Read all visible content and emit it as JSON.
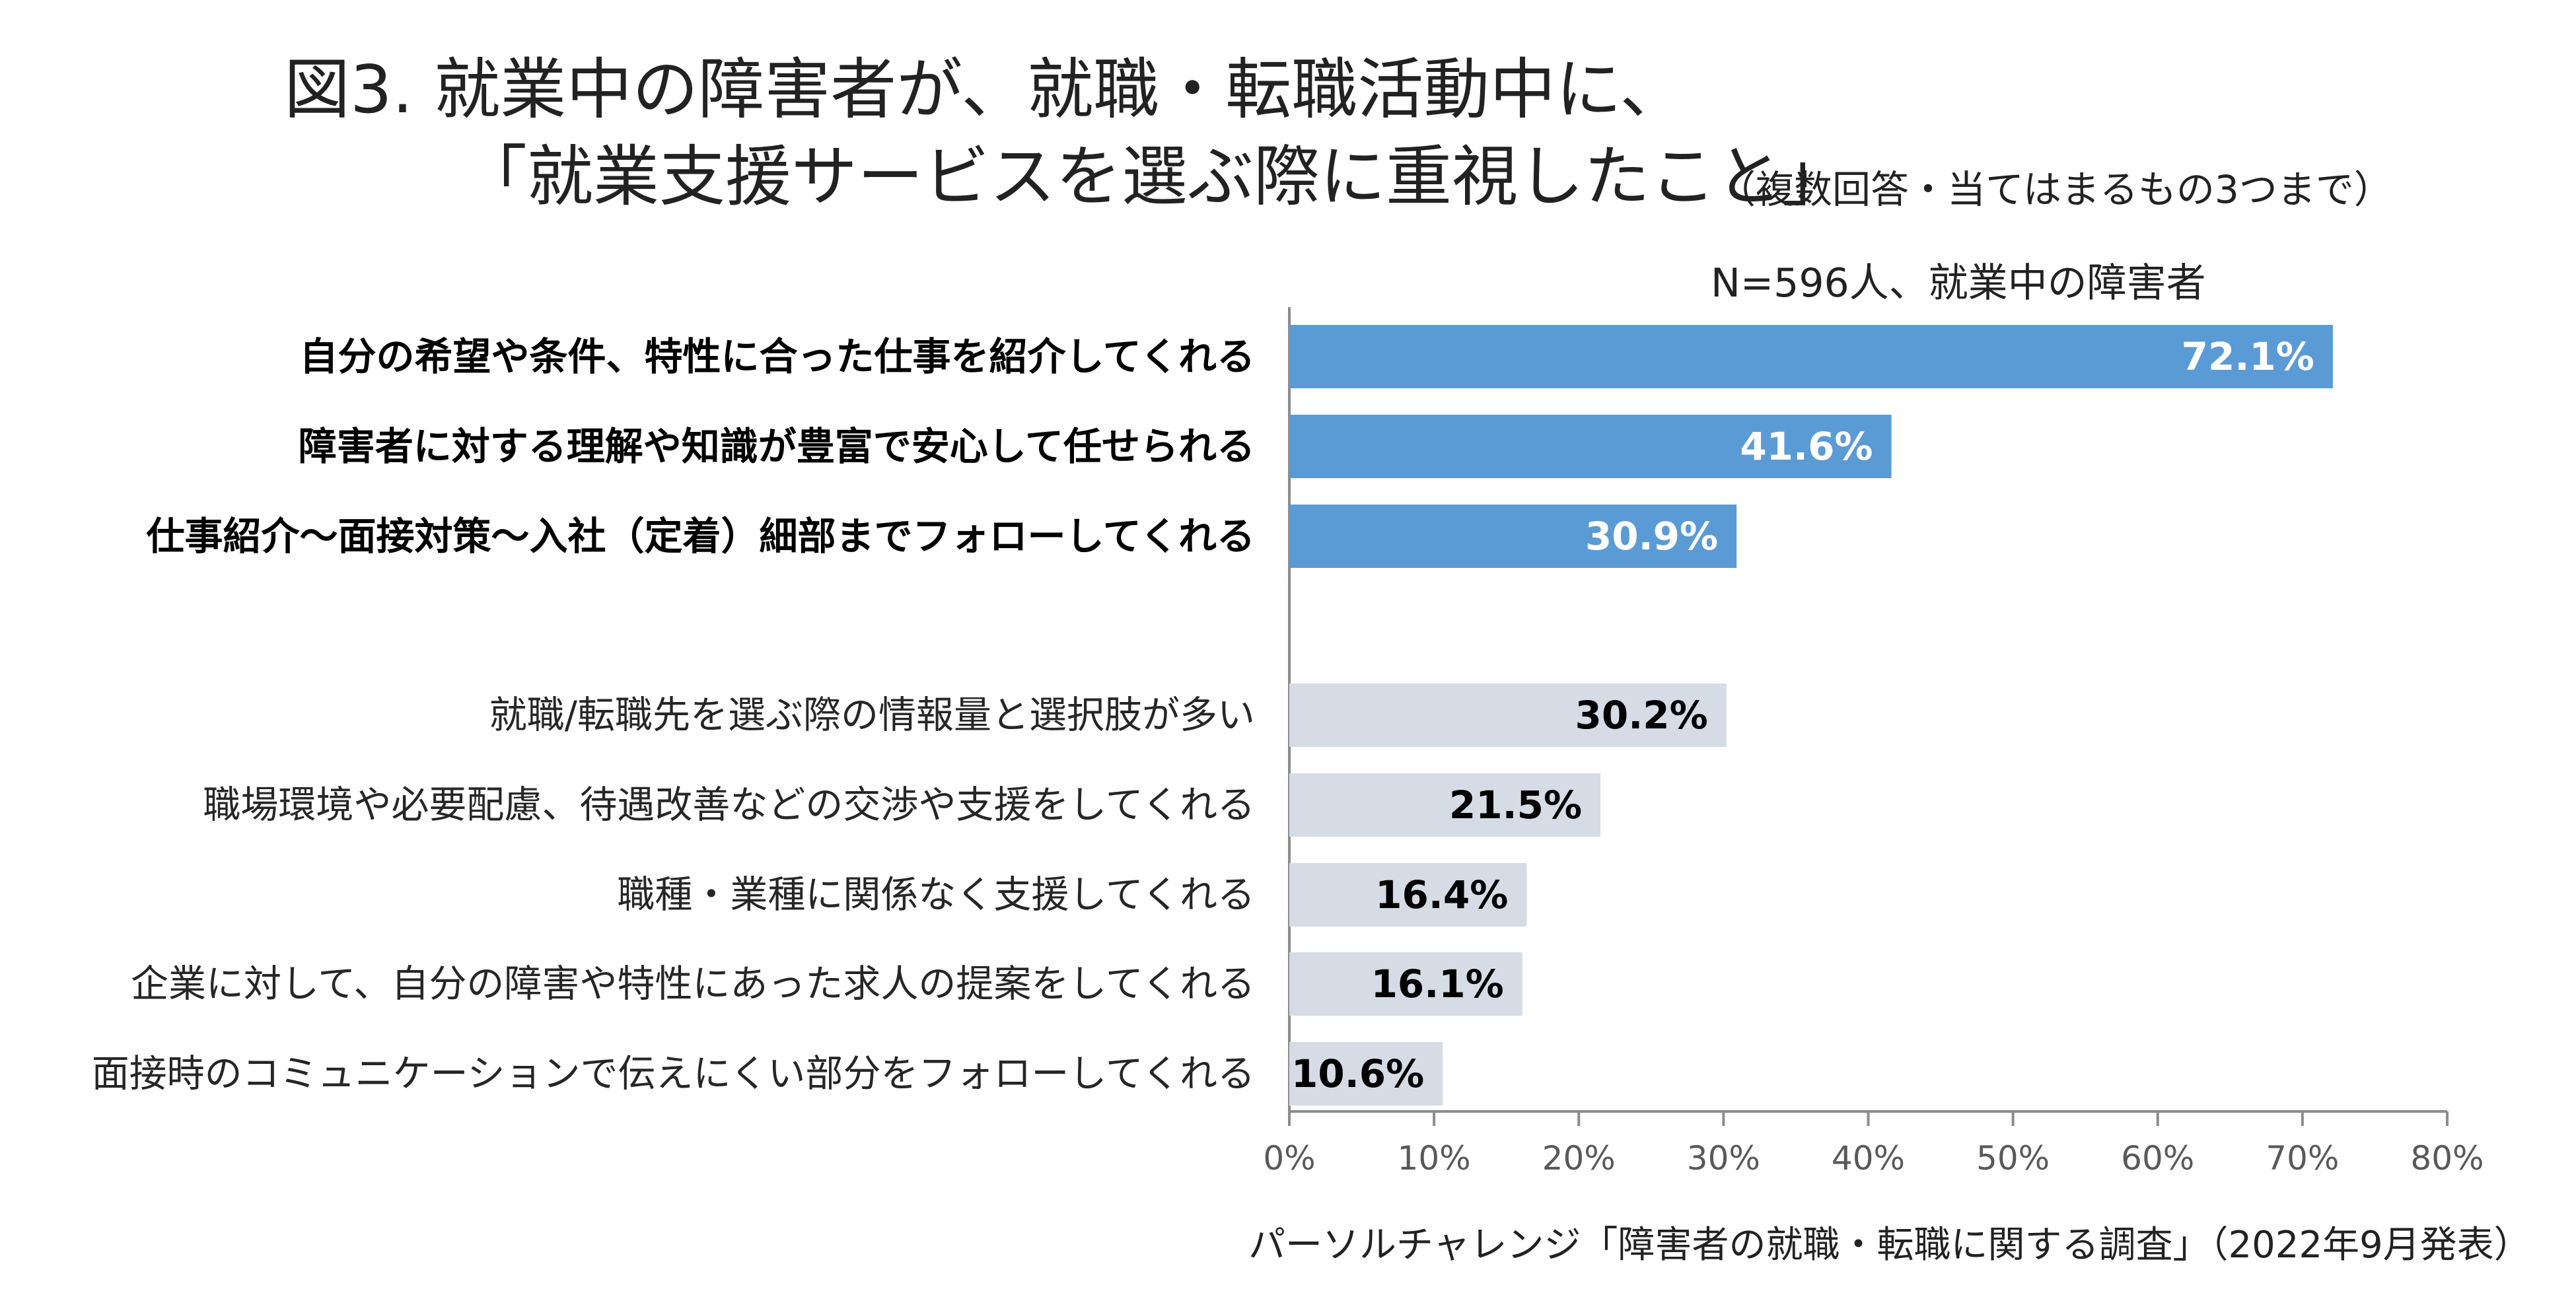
{
  "title_line1": "図3.  就業中の障害者が、就職・転職活動中に、",
  "title_line2": "「就業支援サービスを選ぶ際に重視したこと」",
  "note": "（複数回答・当てはまるもの3つまで）",
  "sample": "N=596人、就業中の障害者",
  "source": "パーソルチャレンジ「障害者の就職・転職に関する調査」（2022年9月発表）",
  "colors": {
    "highlight_bar": "#5b9bd5",
    "other_bar": "#d6dce5",
    "highlight_value_text": "#ffffff",
    "other_value_text": "#000000",
    "axis": "#8c8c8c"
  },
  "chart_data": {
    "type": "bar",
    "orientation": "horizontal",
    "xlim": [
      0,
      80
    ],
    "x_unit": "%",
    "xticks": [
      "0%",
      "10%",
      "20%",
      "30%",
      "40%",
      "50%",
      "60%",
      "70%",
      "80%"
    ],
    "grid": false,
    "categories": [
      "自分の希望や条件、特性に合った仕事を紹介してくれる",
      "障害者に対する理解や知識が豊富で安心して任せられる",
      "仕事紹介～面接対策～入社（定着）細部までフォローしてくれる",
      "就職/転職先を選ぶ際の情報量と選択肢が多い",
      "職場環境や必要配慮、待遇改善などの交渉や支援をしてくれる",
      "職種・業種に関係なく支援してくれる",
      "企業に対して、自分の障害や特性にあった求人の提案をしてくれる",
      "面接時のコミュニケーションで伝えにくい部分をフォローしてくれる"
    ],
    "values": [
      72.1,
      41.6,
      30.9,
      30.2,
      21.5,
      16.4,
      16.1,
      10.6
    ],
    "value_labels": [
      "72.1%",
      "41.6%",
      "30.9%",
      "30.2%",
      "21.5%",
      "16.4%",
      "16.1%",
      "10.6%"
    ],
    "highlighted_top": 3
  }
}
